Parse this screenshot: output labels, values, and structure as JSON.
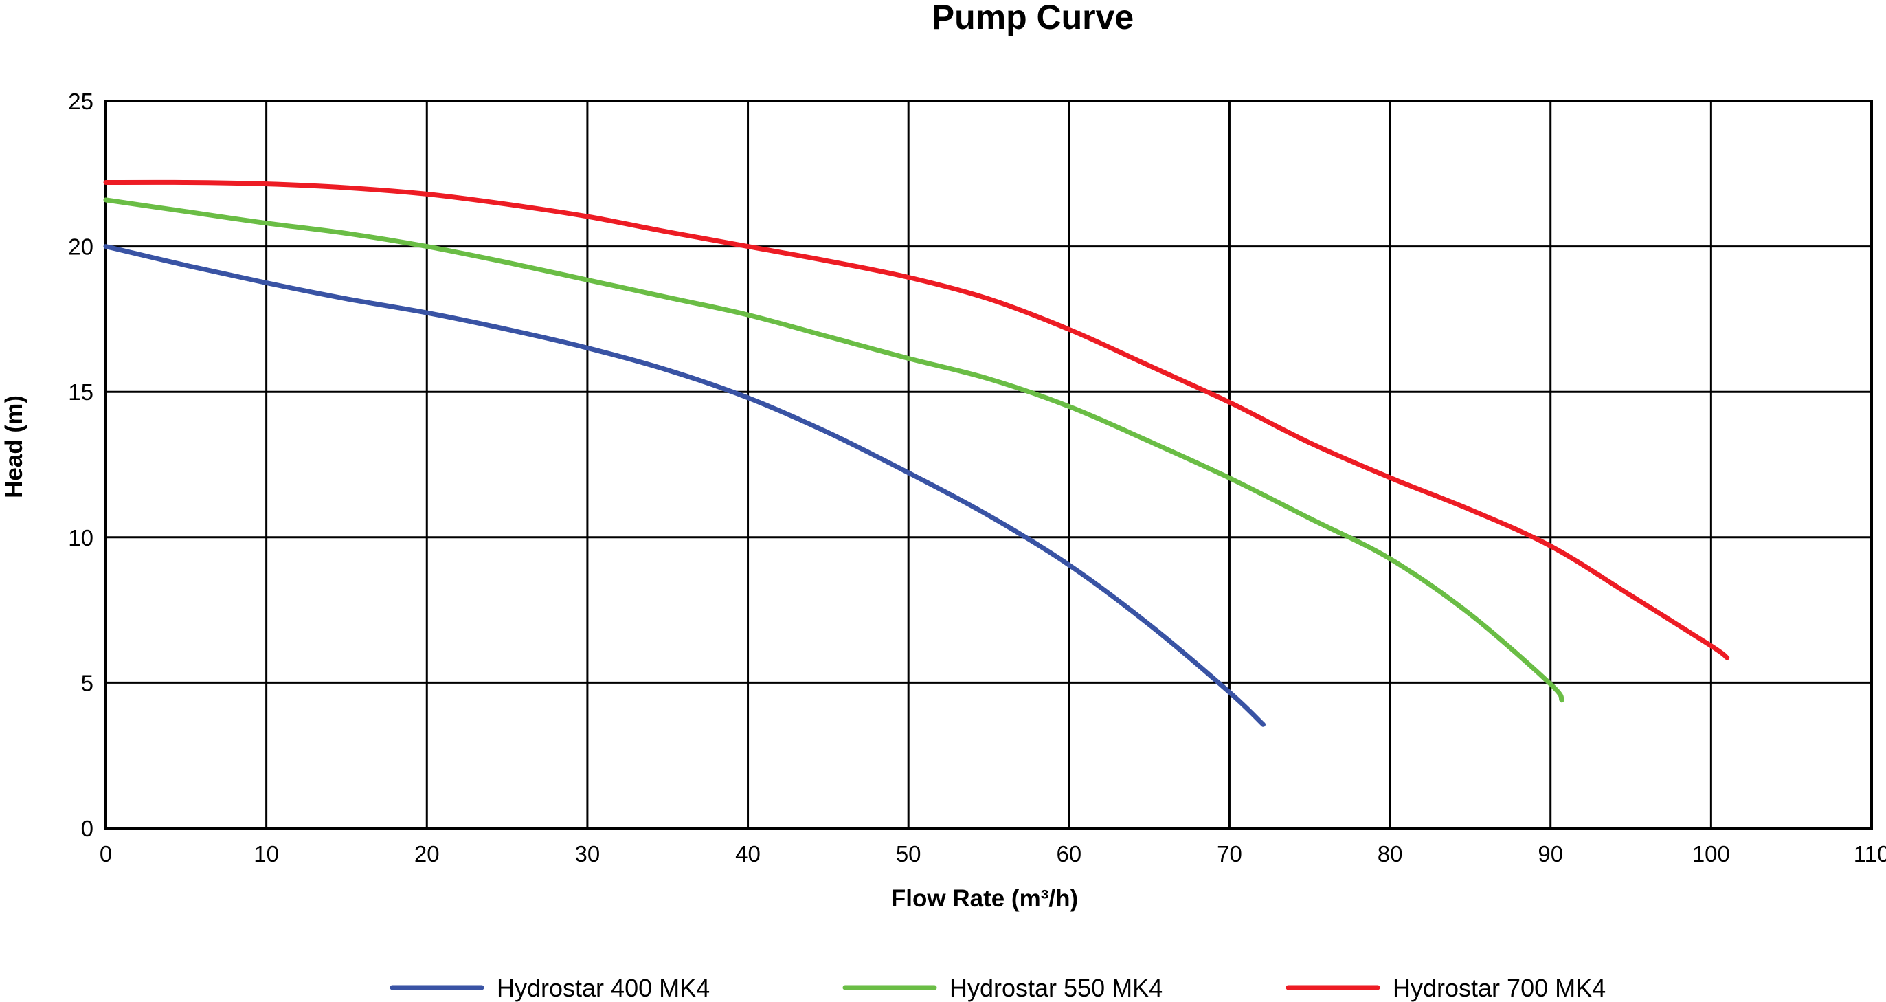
{
  "chart_data": {
    "type": "line",
    "title": "Pump Curve",
    "xlabel": "Flow Rate (m³/h)",
    "ylabel": "Head (m)",
    "xlim": [
      0,
      110
    ],
    "ylim": [
      0,
      25
    ],
    "xticks": [
      0,
      10,
      20,
      30,
      40,
      50,
      60,
      70,
      80,
      90,
      100,
      110
    ],
    "yticks": [
      0,
      5,
      10,
      15,
      20,
      25
    ],
    "grid": true,
    "legend_position": "bottom",
    "series": [
      {
        "name": "Hydrostar 400 MK4",
        "color": "#3953a4",
        "x": [
          0,
          5,
          10,
          15,
          20,
          25,
          30,
          35,
          40,
          45,
          50,
          55,
          60,
          65,
          70,
          72.1
        ],
        "y": [
          20.0,
          19.35,
          18.75,
          18.2,
          17.72,
          17.15,
          16.51,
          15.75,
          14.8,
          13.6,
          12.22,
          10.75,
          9.05,
          7.0,
          4.67,
          3.56
        ]
      },
      {
        "name": "Hydrostar 550 MK4",
        "color": "#6abd45",
        "x": [
          0,
          5,
          10,
          15,
          20,
          25,
          30,
          35,
          40,
          45,
          50,
          55,
          60,
          65,
          70,
          75,
          80,
          85,
          90,
          90.7
        ],
        "y": [
          21.6,
          21.2,
          20.8,
          20.45,
          20.0,
          19.45,
          18.85,
          18.25,
          17.65,
          16.9,
          16.15,
          15.45,
          14.5,
          13.3,
          12.04,
          10.65,
          9.26,
          7.35,
          4.95,
          4.4
        ]
      },
      {
        "name": "Hydrostar 700 MK4",
        "color": "#ed1c24",
        "x": [
          0,
          5,
          10,
          15,
          20,
          25,
          30,
          35,
          40,
          45,
          50,
          55,
          60,
          65,
          70,
          75,
          80,
          85,
          90,
          95,
          100,
          101
        ],
        "y": [
          22.2,
          22.2,
          22.15,
          22.02,
          21.8,
          21.45,
          21.03,
          20.5,
          20.0,
          19.5,
          18.94,
          18.2,
          17.15,
          15.9,
          14.64,
          13.25,
          12.05,
          10.95,
          9.7,
          8.0,
          6.27,
          5.86
        ]
      }
    ]
  }
}
